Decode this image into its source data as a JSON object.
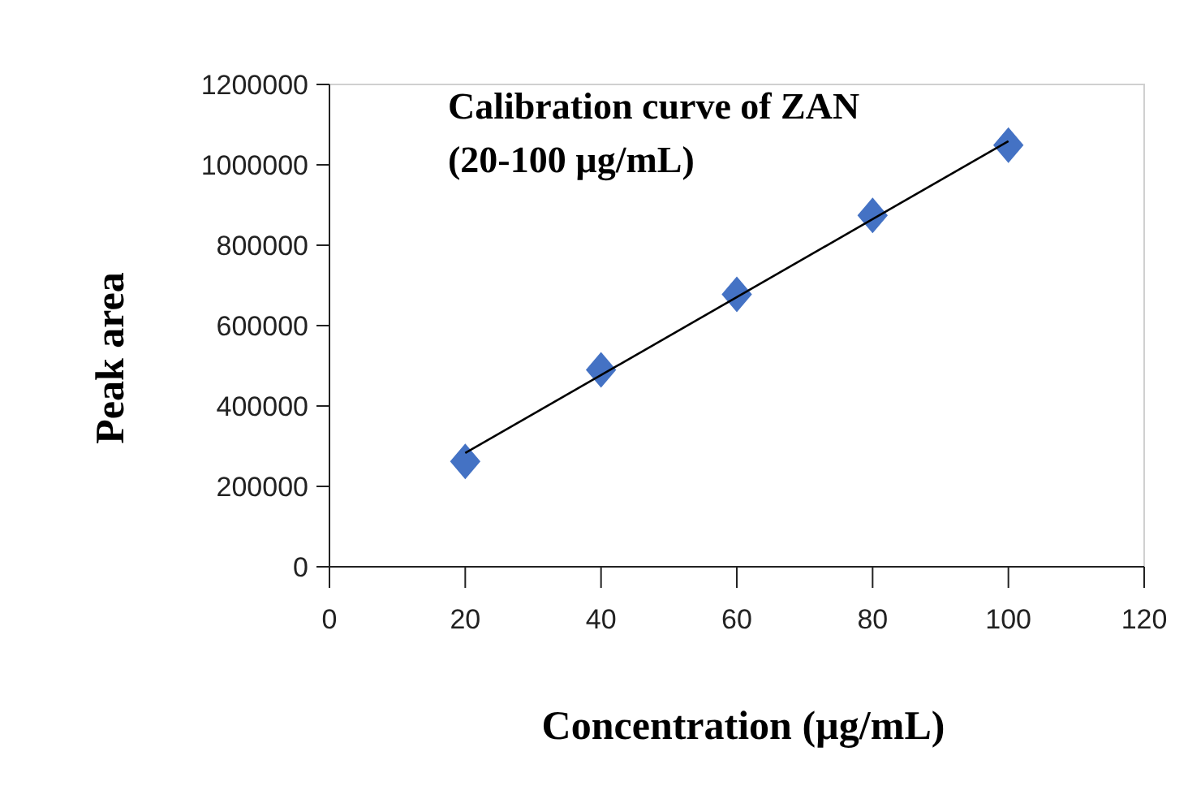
{
  "chart_data": {
    "type": "scatter",
    "title": "Calibration curve of ZAN\n(20-100 µg/mL)",
    "xlabel": "Concentration (µg/mL)",
    "ylabel": "Peak area",
    "series": [
      {
        "color": "#4472c4",
        "marker": "diamond",
        "x": [
          20,
          40,
          60,
          80,
          100
        ],
        "values": [
          262000,
          490000,
          678000,
          874000,
          1049000
        ]
      },
      {
        "type": "line",
        "color": "#000000",
        "marker": "none",
        "line_style": "solid",
        "x": [
          20,
          100
        ],
        "values": [
          283000,
          1059000
        ]
      }
    ],
    "xlim": [
      0,
      120
    ],
    "xticks": [
      0,
      20,
      40,
      60,
      80,
      100,
      120
    ],
    "ylim": [
      0,
      1200000
    ],
    "yticks": [
      0,
      200000,
      400000,
      600000,
      800000,
      1000000,
      1200000
    ],
    "grid": false
  }
}
